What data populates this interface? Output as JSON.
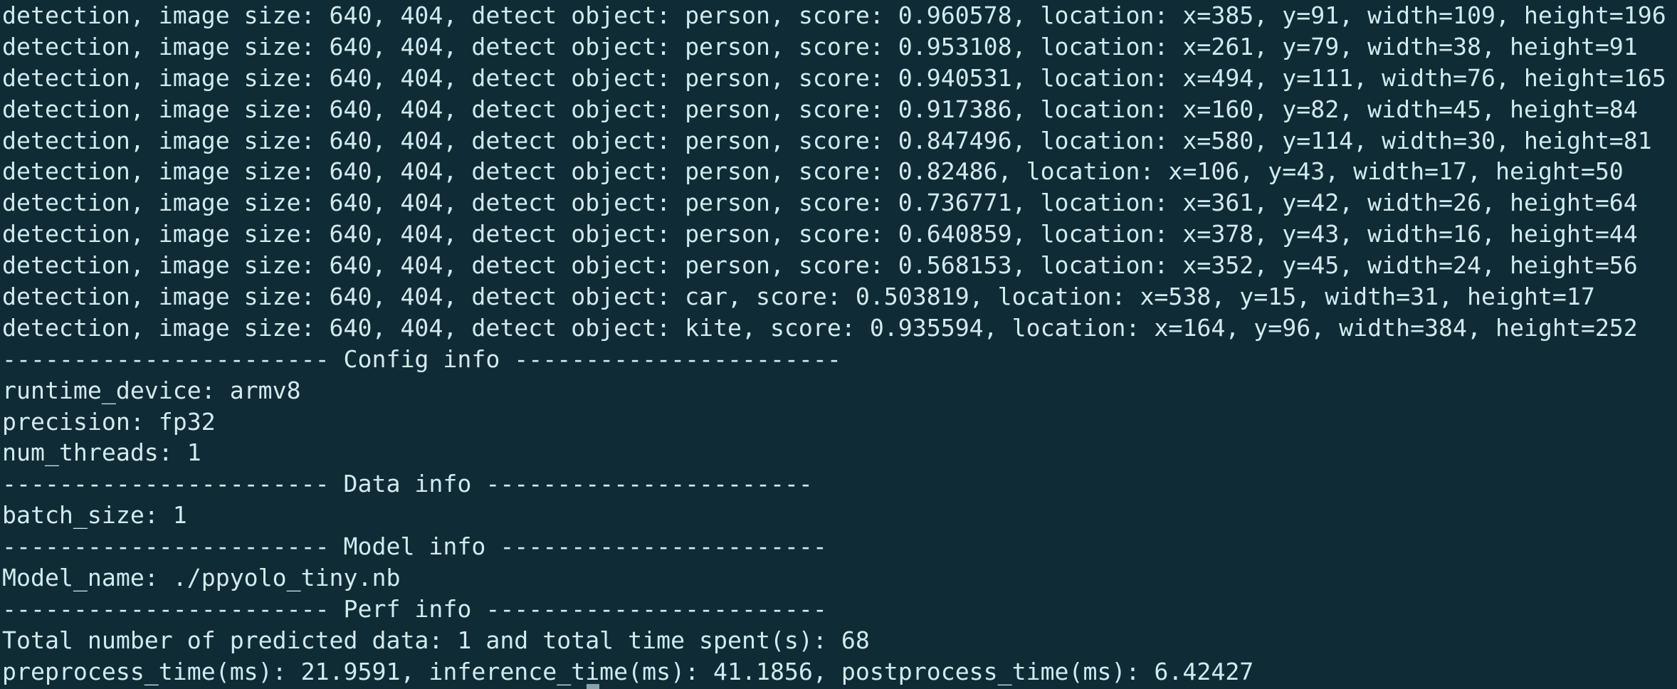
{
  "terminal": {
    "colors": {
      "background": "#0f2b36",
      "foreground": "#d2eaee"
    },
    "lines": [
      "detection, image size: 640, 404, detect object: person, score: 0.960578, location: x=385, y=91, width=109, height=196",
      "detection, image size: 640, 404, detect object: person, score: 0.953108, location: x=261, y=79, width=38, height=91",
      "detection, image size: 640, 404, detect object: person, score: 0.940531, location: x=494, y=111, width=76, height=165",
      "detection, image size: 640, 404, detect object: person, score: 0.917386, location: x=160, y=82, width=45, height=84",
      "detection, image size: 640, 404, detect object: person, score: 0.847496, location: x=580, y=114, width=30, height=81",
      "detection, image size: 640, 404, detect object: person, score: 0.82486, location: x=106, y=43, width=17, height=50",
      "detection, image size: 640, 404, detect object: person, score: 0.736771, location: x=361, y=42, width=26, height=64",
      "detection, image size: 640, 404, detect object: person, score: 0.640859, location: x=378, y=43, width=16, height=44",
      "detection, image size: 640, 404, detect object: person, score: 0.568153, location: x=352, y=45, width=24, height=56",
      "detection, image size: 640, 404, detect object: car, score: 0.503819, location: x=538, y=15, width=31, height=17",
      "detection, image size: 640, 404, detect object: kite, score: 0.935594, location: x=164, y=96, width=384, height=252",
      "----------------------- Config info -----------------------",
      "runtime_device: armv8",
      "precision: fp32",
      "num_threads: 1",
      "----------------------- Data info -----------------------",
      "batch_size: 1",
      "----------------------- Model info -----------------------",
      "Model_name: ./ppyolo_tiny.nb",
      "----------------------- Perf info ------------------------",
      "Total number of predicted data: 1 and total time spent(s): 68",
      "preprocess_time(ms): 21.9591, inference_time(ms): 41.1856, postprocess_time(ms): 6.42427"
    ]
  }
}
